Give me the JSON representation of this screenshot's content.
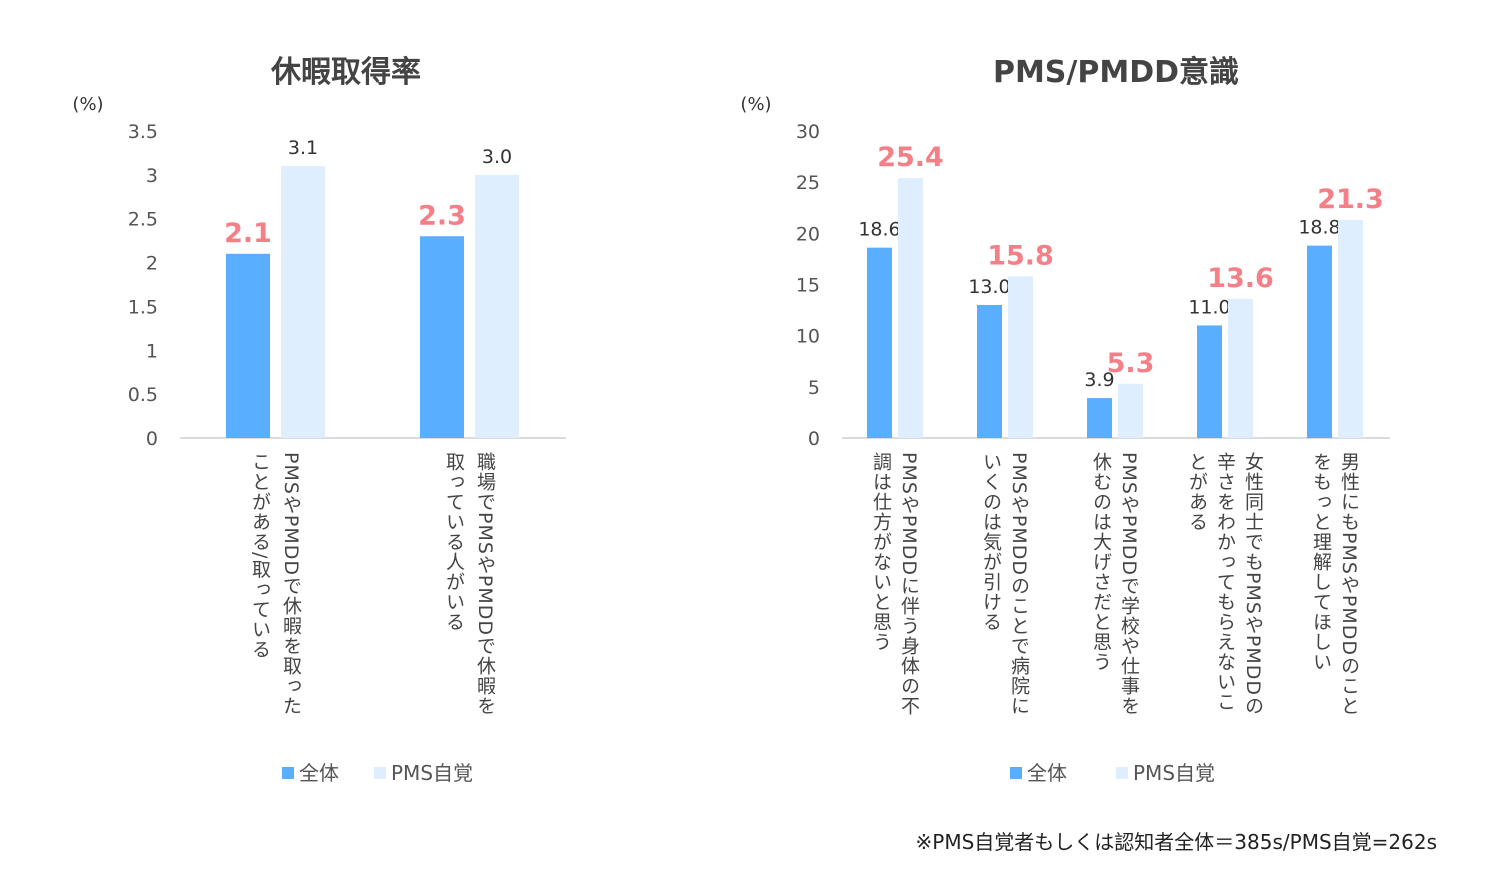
{
  "chart_data": [
    {
      "type": "bar",
      "title": "休暇取得率",
      "ylabel": "(%)",
      "ylim": [
        0,
        3.5
      ],
      "yticks": [
        "0",
        "0.5",
        "1",
        "1.5",
        "2",
        "2.5",
        "3",
        "3.5"
      ],
      "categories": [
        [
          "PMSやPMDDで休暇を取った",
          "ことがある/取っている"
        ],
        [
          "職場でPMSやPMDDで休暇を",
          "取っている人がいる"
        ]
      ],
      "series": [
        {
          "name": "全体",
          "values": [
            2.1,
            2.3
          ],
          "labels": [
            "2.1",
            "2.3"
          ]
        },
        {
          "name": "PMS自覚",
          "values": [
            3.1,
            3.0
          ],
          "labels": [
            "3.1",
            "3.0"
          ]
        }
      ],
      "highlight": [
        [
          true,
          false
        ],
        [
          true,
          false
        ]
      ],
      "legend": "bottom"
    },
    {
      "type": "bar",
      "title": "PMS/PMDD意識",
      "ylabel": "(%)",
      "ylim": [
        0,
        30
      ],
      "yticks": [
        "0",
        "5",
        "10",
        "15",
        "20",
        "25",
        "30"
      ],
      "categories": [
        [
          "PMSやPMDDに伴う身体の不",
          "調は仕方がないと思う"
        ],
        [
          "PMSやPMDDのことで病院に",
          "いくのは気が引ける"
        ],
        [
          "PMSやPMDDで学校や仕事を",
          "休むのは大げさだと思う"
        ],
        [
          "女性同士でもPMSやPMDDの",
          "辛さをわかってもらえないこ",
          "とがある"
        ],
        [
          "男性にもPMSやPMDDのこと",
          "をもっと理解してほしい"
        ]
      ],
      "series": [
        {
          "name": "全体",
          "values": [
            18.6,
            13.0,
            3.9,
            11.0,
            18.8
          ],
          "labels": [
            "18.6",
            "13.0",
            "3.9",
            "11.0",
            "18.8"
          ]
        },
        {
          "name": "PMS自覚",
          "values": [
            25.4,
            15.8,
            5.3,
            13.6,
            21.3
          ],
          "labels": [
            "25.4",
            "15.8",
            "5.3",
            "13.6",
            "21.3"
          ]
        }
      ],
      "legend": "bottom"
    }
  ],
  "colors": {
    "series_0": "#5aaeff",
    "series_1": "#deeeff",
    "highlight_label": "#f47f86",
    "normal_label": "#333333",
    "axis": "#cfcfcf",
    "title": "#444444"
  },
  "footnote": "※PMS自覚者もしくは認知者全体＝385s/PMS自覚=262s"
}
